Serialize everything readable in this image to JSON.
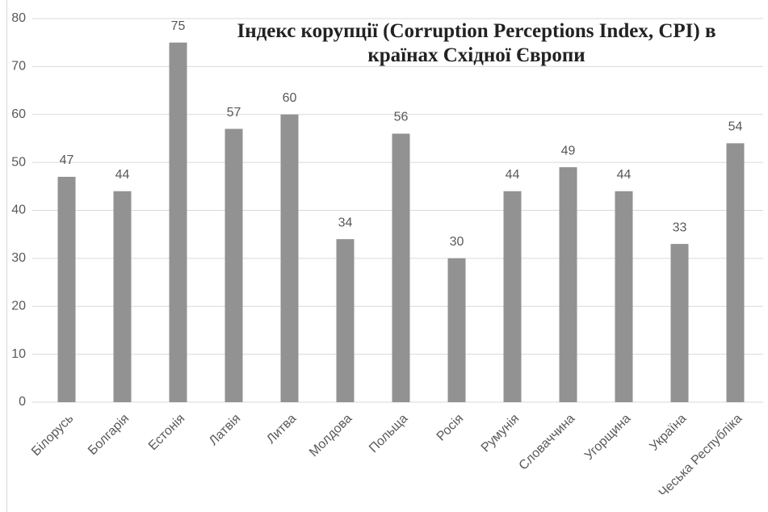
{
  "chart_data": {
    "type": "bar",
    "title": "Індекс корупції (Corruption Perceptions Index, CPI) в країнах Східної Європи",
    "categories": [
      "Білорусь",
      "Болгарія",
      "Естонія",
      "Латвія",
      "Литва",
      "Молдова",
      "Польща",
      "Росія",
      "Румунія",
      "Словаччина",
      "Угорщина",
      "Україна",
      "Чеська Республіка"
    ],
    "values": [
      47,
      44,
      75,
      57,
      60,
      34,
      56,
      30,
      44,
      49,
      44,
      33,
      54
    ],
    "color": "#929292",
    "ylim": [
      0,
      80
    ],
    "yticks": [
      0,
      10,
      20,
      30,
      40,
      50,
      60,
      70,
      80
    ],
    "grid": true
  }
}
